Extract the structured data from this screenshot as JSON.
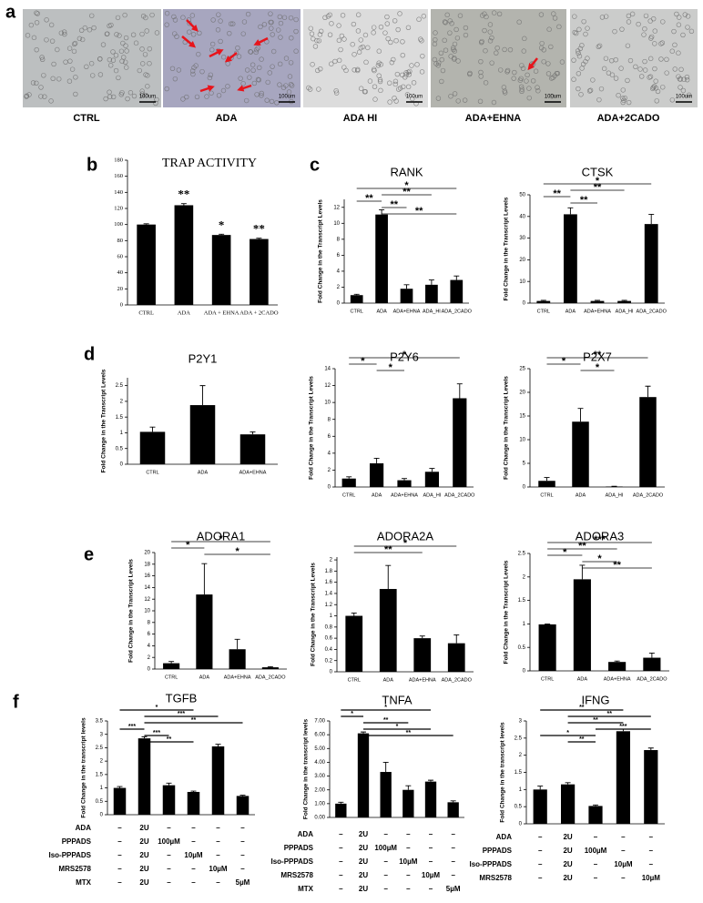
{
  "panel_labels": [
    "a",
    "b",
    "c",
    "d",
    "e",
    "f"
  ],
  "micrographs": [
    {
      "label": "CTRL",
      "scale": "100um"
    },
    {
      "label": "ADA",
      "scale": "100um"
    },
    {
      "label": "ADA HI",
      "scale": "100um"
    },
    {
      "label": "ADA+EHNA",
      "scale": "100um"
    },
    {
      "label": "ADA+2CADO",
      "scale": "100um"
    }
  ],
  "chart_data": [
    {
      "type": "bar",
      "title": "TRAP ACTIVITY",
      "color": "#000000",
      "categories": [
        "CTRL",
        "ADA",
        "ADA + EHNA",
        "ADA + 2CADO"
      ],
      "values": [
        100,
        124,
        87,
        82
      ],
      "errors": [
        1,
        2,
        1,
        1
      ],
      "bar_labels": [
        null,
        "**",
        "*",
        "**"
      ],
      "ylim": [
        0,
        180
      ],
      "yticks": [
        0,
        20,
        40,
        60,
        80,
        100,
        120,
        140,
        160,
        180
      ]
    },
    {
      "type": "bar",
      "title": "RANK",
      "ylabel": "Fold Change in the Transcript Levels",
      "color": "#000000",
      "categories": [
        "CTRL",
        "ADA",
        "ADA+EHNA",
        "ADA_HI",
        "ADA_2CADO"
      ],
      "values": [
        1,
        11.1,
        1.8,
        2.3,
        2.9
      ],
      "errors": [
        0.1,
        0.6,
        0.5,
        0.6,
        0.5
      ],
      "ylim": [
        0,
        13
      ],
      "yticks": [
        0,
        2,
        4,
        6,
        8,
        10,
        12
      ],
      "comparisons": [
        {
          "label": "*",
          "span": [
            0,
            4
          ]
        },
        {
          "label": "**",
          "span": [
            1,
            3
          ]
        },
        {
          "label": "**",
          "span": [
            0,
            1
          ]
        },
        {
          "label": "**",
          "span": [
            1,
            2
          ]
        },
        {
          "label": "**",
          "span": [
            1,
            4
          ]
        }
      ]
    },
    {
      "type": "bar",
      "title": "CTSK",
      "ylabel": "Fold Change in the Transcript Levels",
      "color": "#000000",
      "categories": [
        "CTRL",
        "ADA",
        "ADA+EHNA",
        "ADA_HI",
        "ADA_2CADO"
      ],
      "values": [
        1,
        41,
        1,
        1,
        36.5
      ],
      "errors": [
        0.3,
        3,
        0.3,
        0.3,
        4.5
      ],
      "ylim": [
        0,
        50
      ],
      "yticks": [
        0,
        10,
        20,
        30,
        40,
        50
      ],
      "comparisons": [
        {
          "label": "*",
          "span": [
            0,
            4
          ]
        },
        {
          "label": "**",
          "span": [
            1,
            3
          ]
        },
        {
          "label": "**",
          "span": [
            0,
            1
          ]
        },
        {
          "label": "**",
          "span": [
            1,
            2
          ]
        }
      ]
    },
    {
      "type": "bar",
      "title": "P2Y1",
      "ylabel": "Fold Change in the Transcript Levels",
      "color": "#000000",
      "categories": [
        "CTRL",
        "ADA",
        "ADA+EHNA"
      ],
      "values": [
        1.03,
        1.88,
        0.95
      ],
      "errors": [
        0.15,
        0.62,
        0.08
      ],
      "ylim": [
        0,
        2.75
      ],
      "yticks": [
        0,
        0.5,
        1,
        1.5,
        2,
        2.5
      ]
    },
    {
      "type": "bar",
      "title": "P2Y6",
      "ylabel": "Fold Change in the Transcript Levels",
      "color": "#000000",
      "categories": [
        "CTRL",
        "ADA",
        "ADA+EHNA",
        "ADA_HI",
        "ADA_2CADO"
      ],
      "values": [
        1,
        2.8,
        0.8,
        1.8,
        10.5
      ],
      "errors": [
        0.2,
        0.6,
        0.2,
        0.4,
        1.7
      ],
      "ylim": [
        0,
        14
      ],
      "yticks": [
        0,
        2,
        4,
        6,
        8,
        10,
        12,
        14
      ],
      "comparisons": [
        {
          "label": "*",
          "span": [
            0,
            4
          ]
        },
        {
          "label": "*",
          "span": [
            0,
            1
          ]
        },
        {
          "label": "*",
          "span": [
            1,
            2
          ]
        }
      ]
    },
    {
      "type": "bar",
      "title": "P2X7",
      "ylabel": "Fold Change in the Transcript Levels",
      "color": "#000000",
      "categories": [
        "CTRL",
        "ADA",
        "ADA_HI",
        "ADA_2CADO"
      ],
      "values": [
        1.3,
        13.8,
        0.1,
        19
      ],
      "errors": [
        0.7,
        2.8,
        0.05,
        2.3
      ],
      "ylim": [
        0,
        25
      ],
      "yticks": [
        0,
        5,
        10,
        15,
        20,
        25
      ],
      "comparisons": [
        {
          "label": "**",
          "span": [
            0,
            3
          ]
        },
        {
          "label": "*",
          "span": [
            0,
            1
          ]
        },
        {
          "label": "*",
          "span": [
            1,
            2
          ]
        }
      ]
    },
    {
      "type": "bar",
      "title": "ADORA1",
      "ylabel": "Fold Change in the Transcript Levels",
      "color": "#000000",
      "categories": [
        "CTRL",
        "ADA",
        "ADA+EHNA",
        "ADA_2CADO"
      ],
      "values": [
        1,
        12.8,
        3.4,
        0.3
      ],
      "errors": [
        0.3,
        5.3,
        1.7,
        0.1
      ],
      "ylim": [
        0,
        20
      ],
      "yticks": [
        0,
        2,
        4,
        6,
        8,
        10,
        12,
        14,
        16,
        18,
        20
      ],
      "comparisons": [
        {
          "label": "*",
          "span": [
            0,
            3
          ]
        },
        {
          "label": "*",
          "span": [
            0,
            1
          ]
        },
        {
          "label": "*",
          "span": [
            1,
            3
          ]
        }
      ]
    },
    {
      "type": "bar",
      "title": "ADORA2A",
      "ylabel": "Fold Change in the Transcript Levels",
      "color": "#000000",
      "categories": [
        "CTRL",
        "ADA",
        "ADA+EHNA",
        "ADA_2CADO"
      ],
      "values": [
        1,
        1.48,
        0.6,
        0.51
      ],
      "errors": [
        0.05,
        0.42,
        0.04,
        0.15
      ],
      "ylim": [
        0,
        2.05
      ],
      "yticks": [
        0,
        0.2,
        0.4,
        0.6,
        0.8,
        1,
        1.2,
        1.4,
        1.6,
        1.8,
        2
      ],
      "comparisons": [
        {
          "label": "*",
          "span": [
            0,
            3
          ]
        },
        {
          "label": "**",
          "span": [
            0,
            2
          ]
        }
      ]
    },
    {
      "type": "bar",
      "title": "ADORA3",
      "ylabel": "Fold Change in the Transcript Levels",
      "color": "#000000",
      "categories": [
        "CTRL",
        "ADA",
        "ADA+EHNA",
        "ADA_2CADO"
      ],
      "values": [
        0.99,
        1.95,
        0.19,
        0.28
      ],
      "errors": [
        0.01,
        0.3,
        0.02,
        0.1
      ],
      "ylim": [
        0,
        2.5
      ],
      "yticks": [
        0,
        0.5,
        1,
        1.5,
        2,
        2.5
      ],
      "comparisons": [
        {
          "label": "***",
          "span": [
            0,
            3
          ]
        },
        {
          "label": "**",
          "span": [
            0,
            2
          ]
        },
        {
          "label": "*",
          "span": [
            0,
            1
          ]
        },
        {
          "label": "*",
          "span": [
            1,
            2
          ]
        },
        {
          "label": "**",
          "span": [
            1,
            3
          ]
        }
      ]
    },
    {
      "type": "bar",
      "title": "TGFB",
      "ylabel": "Fold Change in the transcript levels",
      "color": "#000000",
      "values": [
        1,
        2.85,
        1.1,
        0.85,
        2.55,
        0.7
      ],
      "errors": [
        0.05,
        0.06,
        0.08,
        0.03,
        0.08,
        0.03
      ],
      "ylim": [
        0,
        3.5
      ],
      "yticks": [
        0,
        0.5,
        1,
        1.5,
        2,
        2.5,
        3,
        3.5
      ],
      "comparisons": [
        {
          "label": "*",
          "span": [
            0,
            3
          ]
        },
        {
          "label": "***",
          "span": [
            1,
            4
          ]
        },
        {
          "label": "**",
          "span": [
            1,
            5
          ]
        },
        {
          "label": "***",
          "span": [
            0,
            1
          ]
        },
        {
          "label": "***",
          "span": [
            1,
            2
          ]
        },
        {
          "label": "**",
          "span": [
            1,
            3
          ]
        }
      ],
      "conditions": [
        {
          "name": "ADA",
          "values": [
            "–",
            "2U",
            "–",
            "–",
            "–",
            "–"
          ]
        },
        {
          "name": "PPPADS",
          "values": [
            "–",
            "2U",
            "100µM",
            "–",
            "–",
            "–"
          ]
        },
        {
          "name": "Iso-PPPADS",
          "values": [
            "–",
            "2U",
            "–",
            "10µM",
            "–",
            "–"
          ]
        },
        {
          "name": "MRS2578",
          "values": [
            "–",
            "2U",
            "–",
            "–",
            "10µM",
            "–"
          ]
        },
        {
          "name": "MTX",
          "values": [
            "–",
            "2U",
            "–",
            "–",
            "–",
            "5µM"
          ]
        }
      ]
    },
    {
      "type": "bar",
      "title": "TNFA",
      "ylabel": "Fold Change in the transcript levels",
      "color": "#000000",
      "values": [
        1,
        6.1,
        3.3,
        2,
        2.6,
        1.1
      ],
      "errors": [
        0.1,
        0.1,
        0.7,
        0.3,
        0.1,
        0.1
      ],
      "ylim": [
        0,
        7
      ],
      "yticks": [
        {
          "value": 0,
          "label": "0.00"
        },
        {
          "value": 1,
          "label": "1.00"
        },
        {
          "value": 2,
          "label": "2.00"
        },
        {
          "value": 3,
          "label": "3.00"
        },
        {
          "value": 4,
          "label": "4.00"
        },
        {
          "value": 5,
          "label": "5.00"
        },
        {
          "value": 6,
          "label": "6.00"
        },
        {
          "value": 7,
          "label": "7.00"
        }
      ],
      "comparisons": [
        {
          "label": "*",
          "span": [
            0,
            4
          ]
        },
        {
          "label": "*",
          "span": [
            0,
            1
          ]
        },
        {
          "label": "**",
          "span": [
            1,
            3
          ]
        },
        {
          "label": "*",
          "span": [
            1,
            4
          ]
        },
        {
          "label": "**",
          "span": [
            1,
            5
          ]
        }
      ],
      "conditions": [
        {
          "name": "ADA",
          "values": [
            "–",
            "2U",
            "–",
            "–",
            "–",
            "–"
          ]
        },
        {
          "name": "PPPADS",
          "values": [
            "–",
            "2U",
            "100µM",
            "–",
            "–",
            "–"
          ]
        },
        {
          "name": "Iso-PPPADS",
          "values": [
            "–",
            "2U",
            "–",
            "10µM",
            "–",
            "–"
          ]
        },
        {
          "name": "MRS2578",
          "values": [
            "–",
            "2U",
            "–",
            "–",
            "10µM",
            "–"
          ]
        },
        {
          "name": "MTX",
          "values": [
            "–",
            "2U",
            "–",
            "–",
            "–",
            "5µM"
          ]
        }
      ]
    },
    {
      "type": "bar",
      "title": "IFNG",
      "ylabel": "Fold Change in the transcript levels",
      "color": "#000000",
      "values": [
        1,
        1.15,
        0.52,
        2.7,
        2.15
      ],
      "errors": [
        0.1,
        0.05,
        0.03,
        0.06,
        0.06
      ],
      "ylim": [
        0,
        3
      ],
      "yticks": [
        0,
        0.5,
        1,
        1.5,
        2,
        2.5,
        3
      ],
      "comparisons": [
        {
          "label": "**",
          "span": [
            0,
            3
          ]
        },
        {
          "label": "**",
          "span": [
            1,
            4
          ]
        },
        {
          "label": "**",
          "span": [
            1,
            3
          ]
        },
        {
          "label": "***",
          "span": [
            2,
            4
          ]
        },
        {
          "label": "*",
          "span": [
            0,
            2
          ]
        },
        {
          "label": "**",
          "span": [
            1,
            2
          ]
        }
      ],
      "conditions": [
        {
          "name": "ADA",
          "values": [
            "–",
            "2U",
            "–",
            "–",
            "–"
          ]
        },
        {
          "name": "PPPADS",
          "values": [
            "–",
            "2U",
            "100µM",
            "–",
            "–"
          ]
        },
        {
          "name": "Iso-PPPADS",
          "values": [
            "–",
            "2U",
            "–",
            "10µM",
            "–"
          ]
        },
        {
          "name": "MRS2578",
          "values": [
            "–",
            "2U",
            "–",
            "–",
            "10µM"
          ]
        }
      ]
    }
  ]
}
